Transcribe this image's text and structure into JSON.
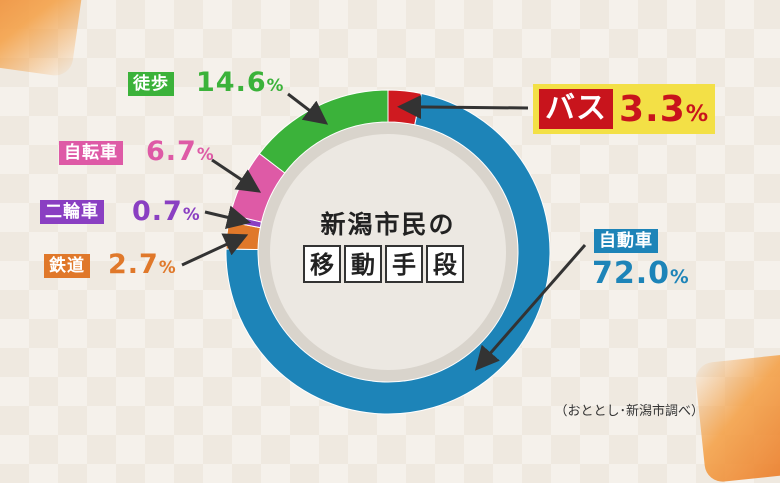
{
  "chart_data": {
    "type": "pie",
    "title": "新潟市民の",
    "subtitle_chars": [
      "移",
      "動",
      "手",
      "段"
    ],
    "source": "（おととし･新潟市調べ）",
    "slices": [
      {
        "key": "bus",
        "label": "バス",
        "value": 3.3,
        "display": "3.3",
        "color": "#cf1a20"
      },
      {
        "key": "car",
        "label": "自動車",
        "value": 72.0,
        "display": "72.0",
        "color": "#1d84b8"
      },
      {
        "key": "rail",
        "label": "鉄道",
        "value": 2.7,
        "display": "2.7",
        "color": "#e0782a"
      },
      {
        "key": "moto",
        "label": "二輪車",
        "value": 0.7,
        "display": "0.7",
        "color": "#8a3fc2"
      },
      {
        "key": "bike",
        "label": "自転車",
        "value": 6.7,
        "display": "6.7",
        "color": "#de5aa6"
      },
      {
        "key": "walk",
        "label": "徒歩",
        "value": 14.6,
        "display": "14.6",
        "color": "#3bb23a"
      }
    ],
    "unit": "%"
  }
}
